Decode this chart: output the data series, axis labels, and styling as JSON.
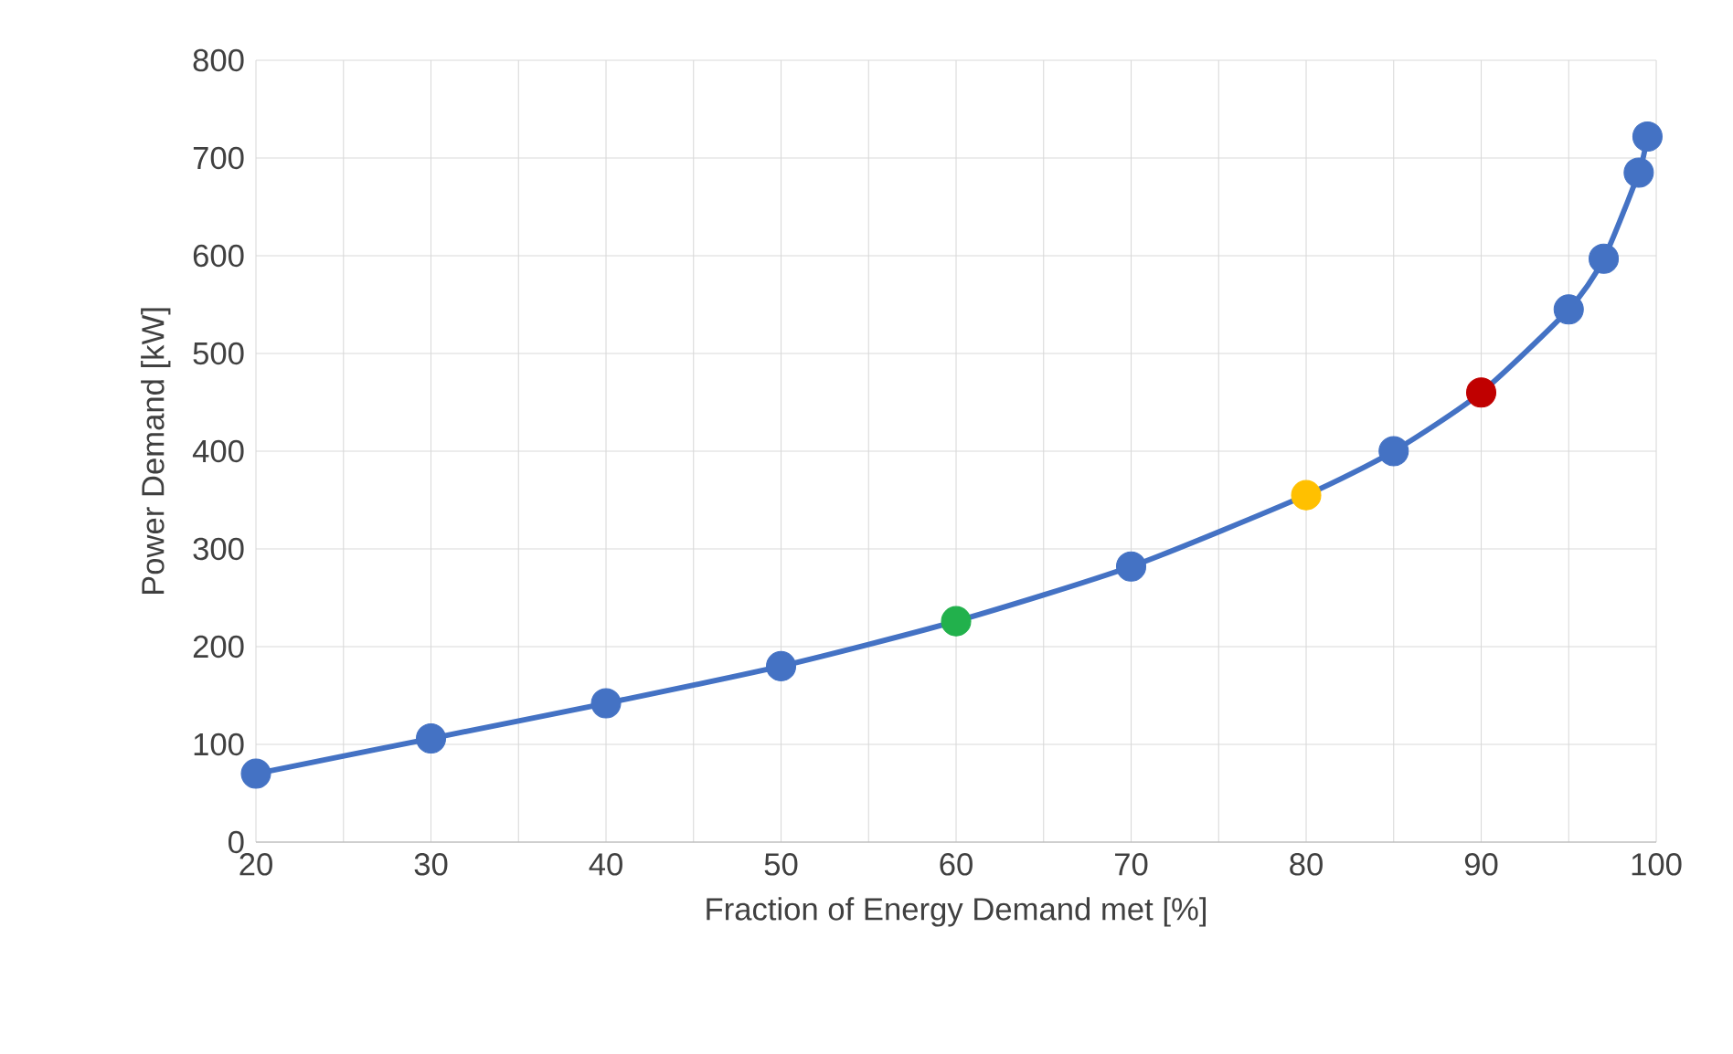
{
  "chart_data": {
    "type": "line",
    "xlabel": "Fraction of Energy Demand met [%]",
    "ylabel": "Power Demand [kW]",
    "x": [
      20,
      30,
      40,
      50,
      60,
      70,
      80,
      85,
      90,
      95,
      97,
      99,
      99.5
    ],
    "series": [
      {
        "color": "#4472c4",
        "values": [
          70,
          106,
          142,
          180,
          226,
          282,
          355,
          400,
          460,
          545,
          597,
          685,
          722
        ],
        "colors": [
          "#4472c4",
          "#4472c4",
          "#4472c4",
          "#4472c4",
          "#22b14c",
          "#4472c4",
          "#ffc000",
          "#4472c4",
          "#c00000",
          "#4472c4",
          "#4472c4",
          "#4472c4",
          "#4472c4"
        ]
      }
    ],
    "xlim": [
      20,
      100
    ],
    "ylim": [
      0,
      800
    ],
    "xticks": [
      20,
      30,
      40,
      50,
      60,
      70,
      80,
      90,
      100
    ],
    "yticks": [
      0,
      100,
      200,
      300,
      400,
      500,
      600,
      700,
      800
    ],
    "grid": true,
    "marker": "circle",
    "line_style": "solid"
  }
}
